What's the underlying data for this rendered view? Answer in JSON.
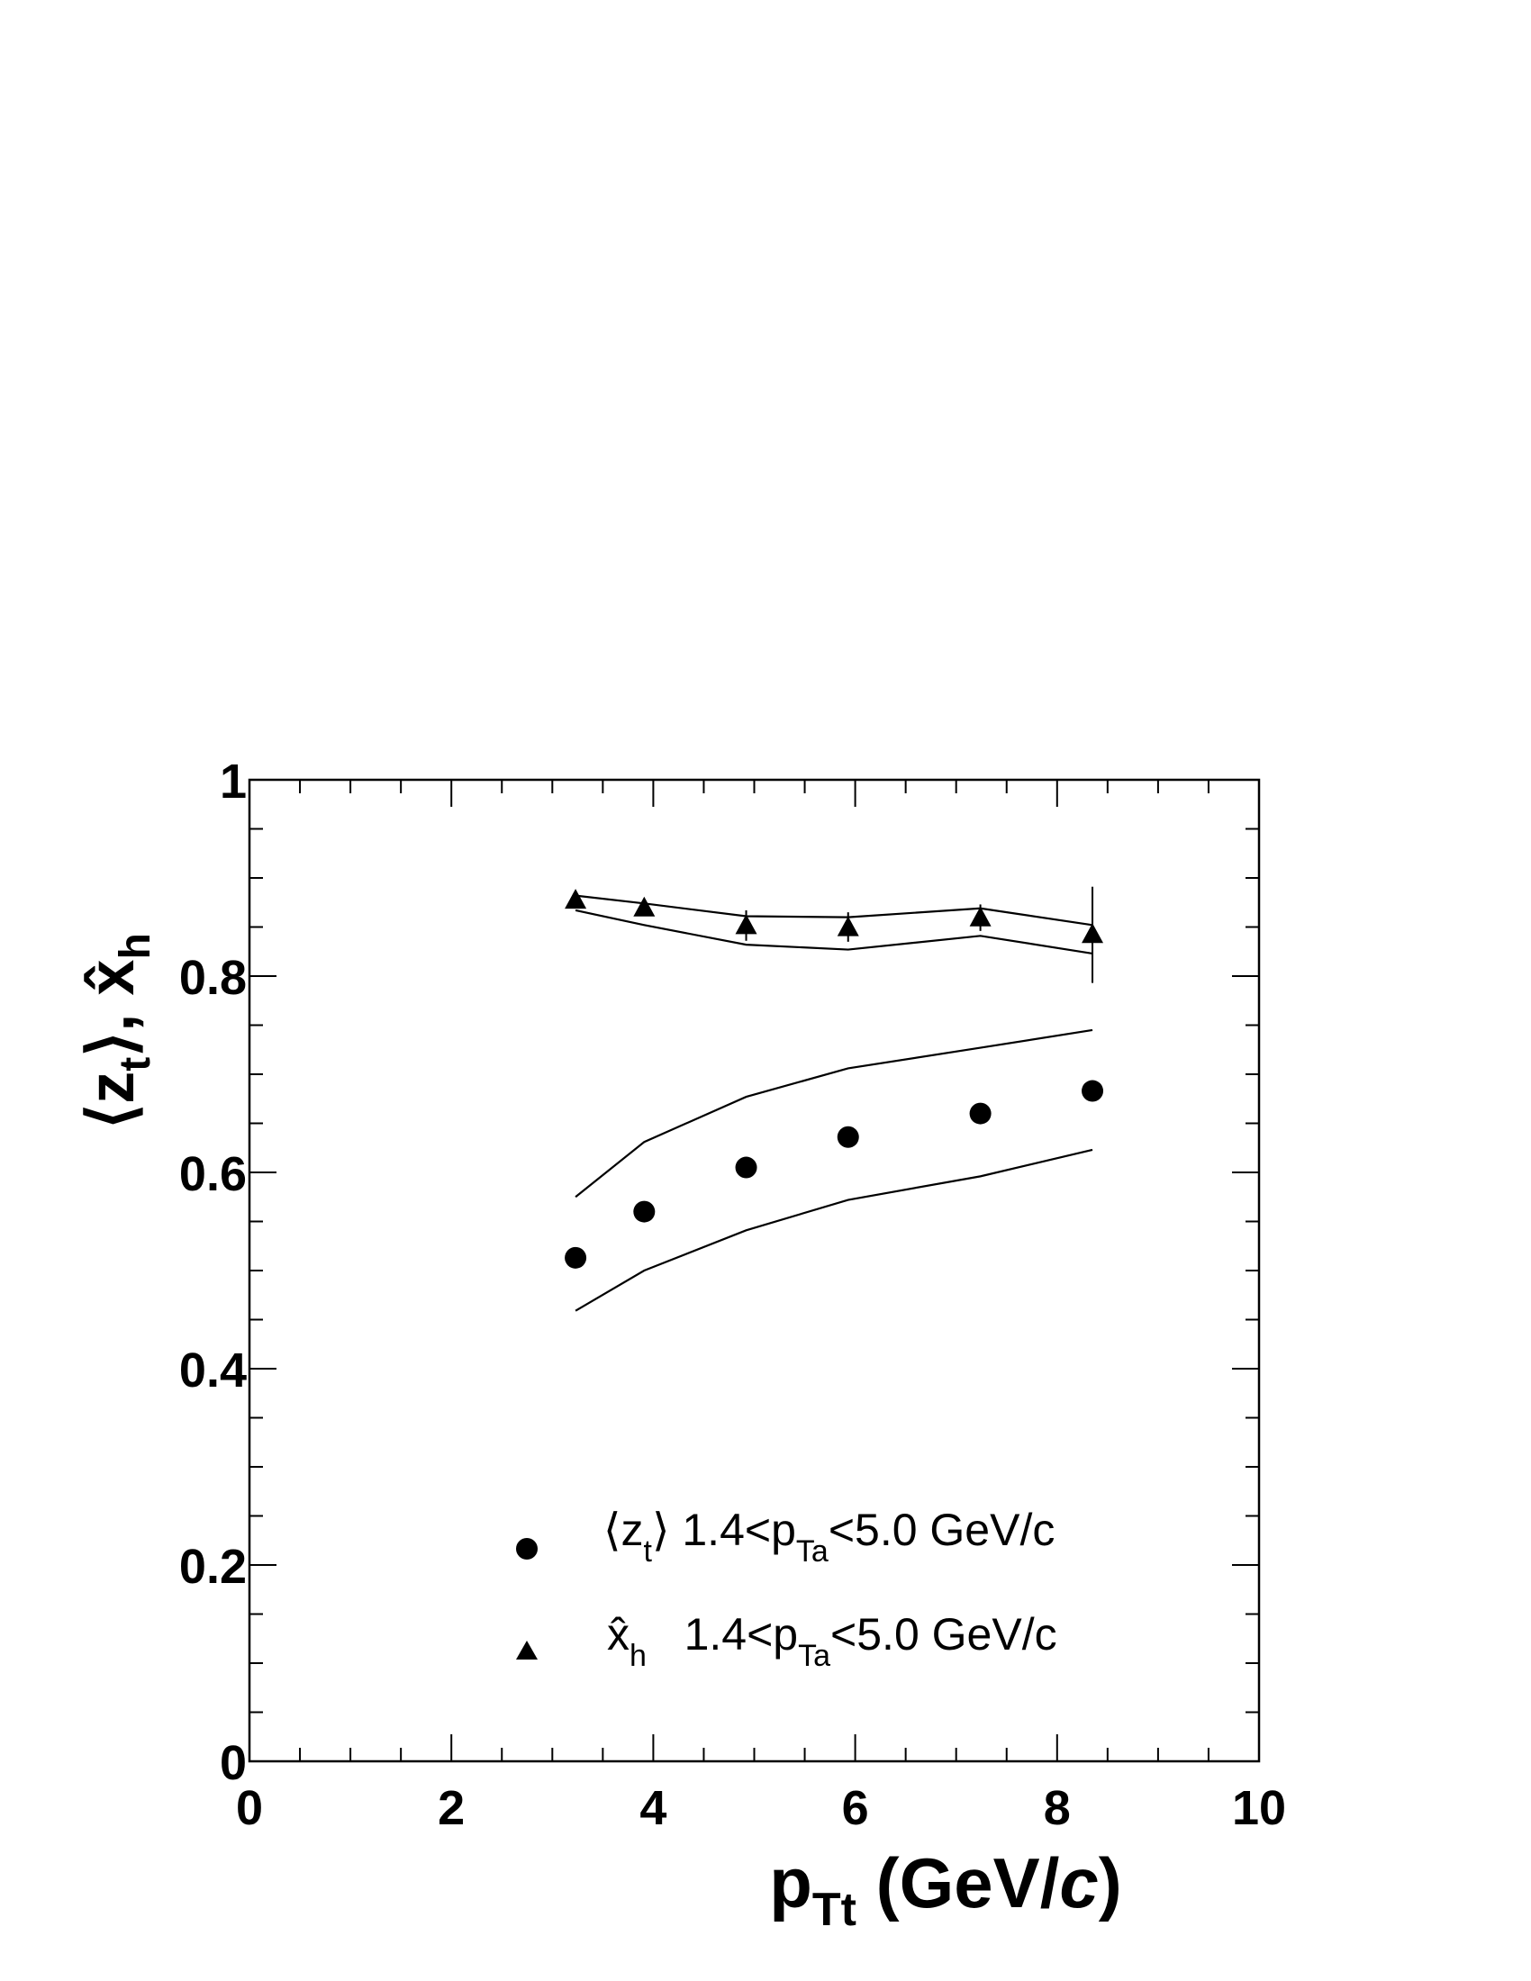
{
  "chart_data": {
    "type": "scatter",
    "title": "",
    "xlabel": {
      "main": "p",
      "sub": "Tt",
      "unit_open": "  (GeV/",
      "unit_italic": "c",
      "unit_close": ")"
    },
    "ylabel": {
      "part1_open": "⟨z",
      "part1_sub": "t",
      "part1_close": "⟩, ",
      "part2": "x̂",
      "part2_sub": "h"
    },
    "xlim": [
      0,
      10
    ],
    "ylim": [
      0,
      1
    ],
    "x_ticks": [
      "0",
      "2",
      "4",
      "6",
      "8",
      "10"
    ],
    "y_ticks": [
      "0",
      "0.2",
      "0.4",
      "0.6",
      "0.8",
      "1"
    ],
    "grid": false,
    "legend_position": "bottom-center",
    "series": [
      {
        "name": "⟨z_t⟩ 1.4<p_Ta<5.0 GeV/c",
        "marker": "circle",
        "color": "#000000",
        "x": [
          3.23,
          3.91,
          4.92,
          5.93,
          7.24,
          8.35
        ],
        "y": [
          0.513,
          0.56,
          0.605,
          0.636,
          0.66,
          0.683
        ],
        "band_upper": [
          0.575,
          0.631,
          0.677,
          0.706,
          0.727,
          0.745
        ],
        "band_lower": [
          0.459,
          0.5,
          0.541,
          0.572,
          0.596,
          0.623
        ]
      },
      {
        "name": "x̂_h 1.4<p_Ta<5.0 GeV/c",
        "marker": "triangle",
        "color": "#000000",
        "x": [
          3.23,
          3.91,
          4.92,
          5.93,
          7.24,
          8.35
        ],
        "y": [
          0.877,
          0.869,
          0.851,
          0.849,
          0.859,
          0.842
        ],
        "err_low": [
          0.87,
          0.862,
          0.836,
          0.835,
          0.846,
          0.793
        ],
        "err_high": [
          0.884,
          0.876,
          0.867,
          0.865,
          0.873,
          0.891
        ],
        "band_upper": [
          0.882,
          0.874,
          0.861,
          0.86,
          0.869,
          0.852
        ],
        "band_lower": [
          0.867,
          0.852,
          0.832,
          0.827,
          0.841,
          0.823
        ]
      }
    ]
  },
  "legend": {
    "entries": [
      {
        "marker": "circle",
        "text_open": "⟨z",
        "text_sub1": "t",
        "text_mid": "⟩ 1.4<p",
        "text_sub2": "Ta",
        "text_end": "<5.0 GeV/c"
      },
      {
        "marker": "triangle",
        "text_open": "x̂",
        "text_sub1": "h",
        "text_mid": "   1.4<p",
        "text_sub2": "Ta",
        "text_end": "<5.0 GeV/c"
      }
    ]
  }
}
